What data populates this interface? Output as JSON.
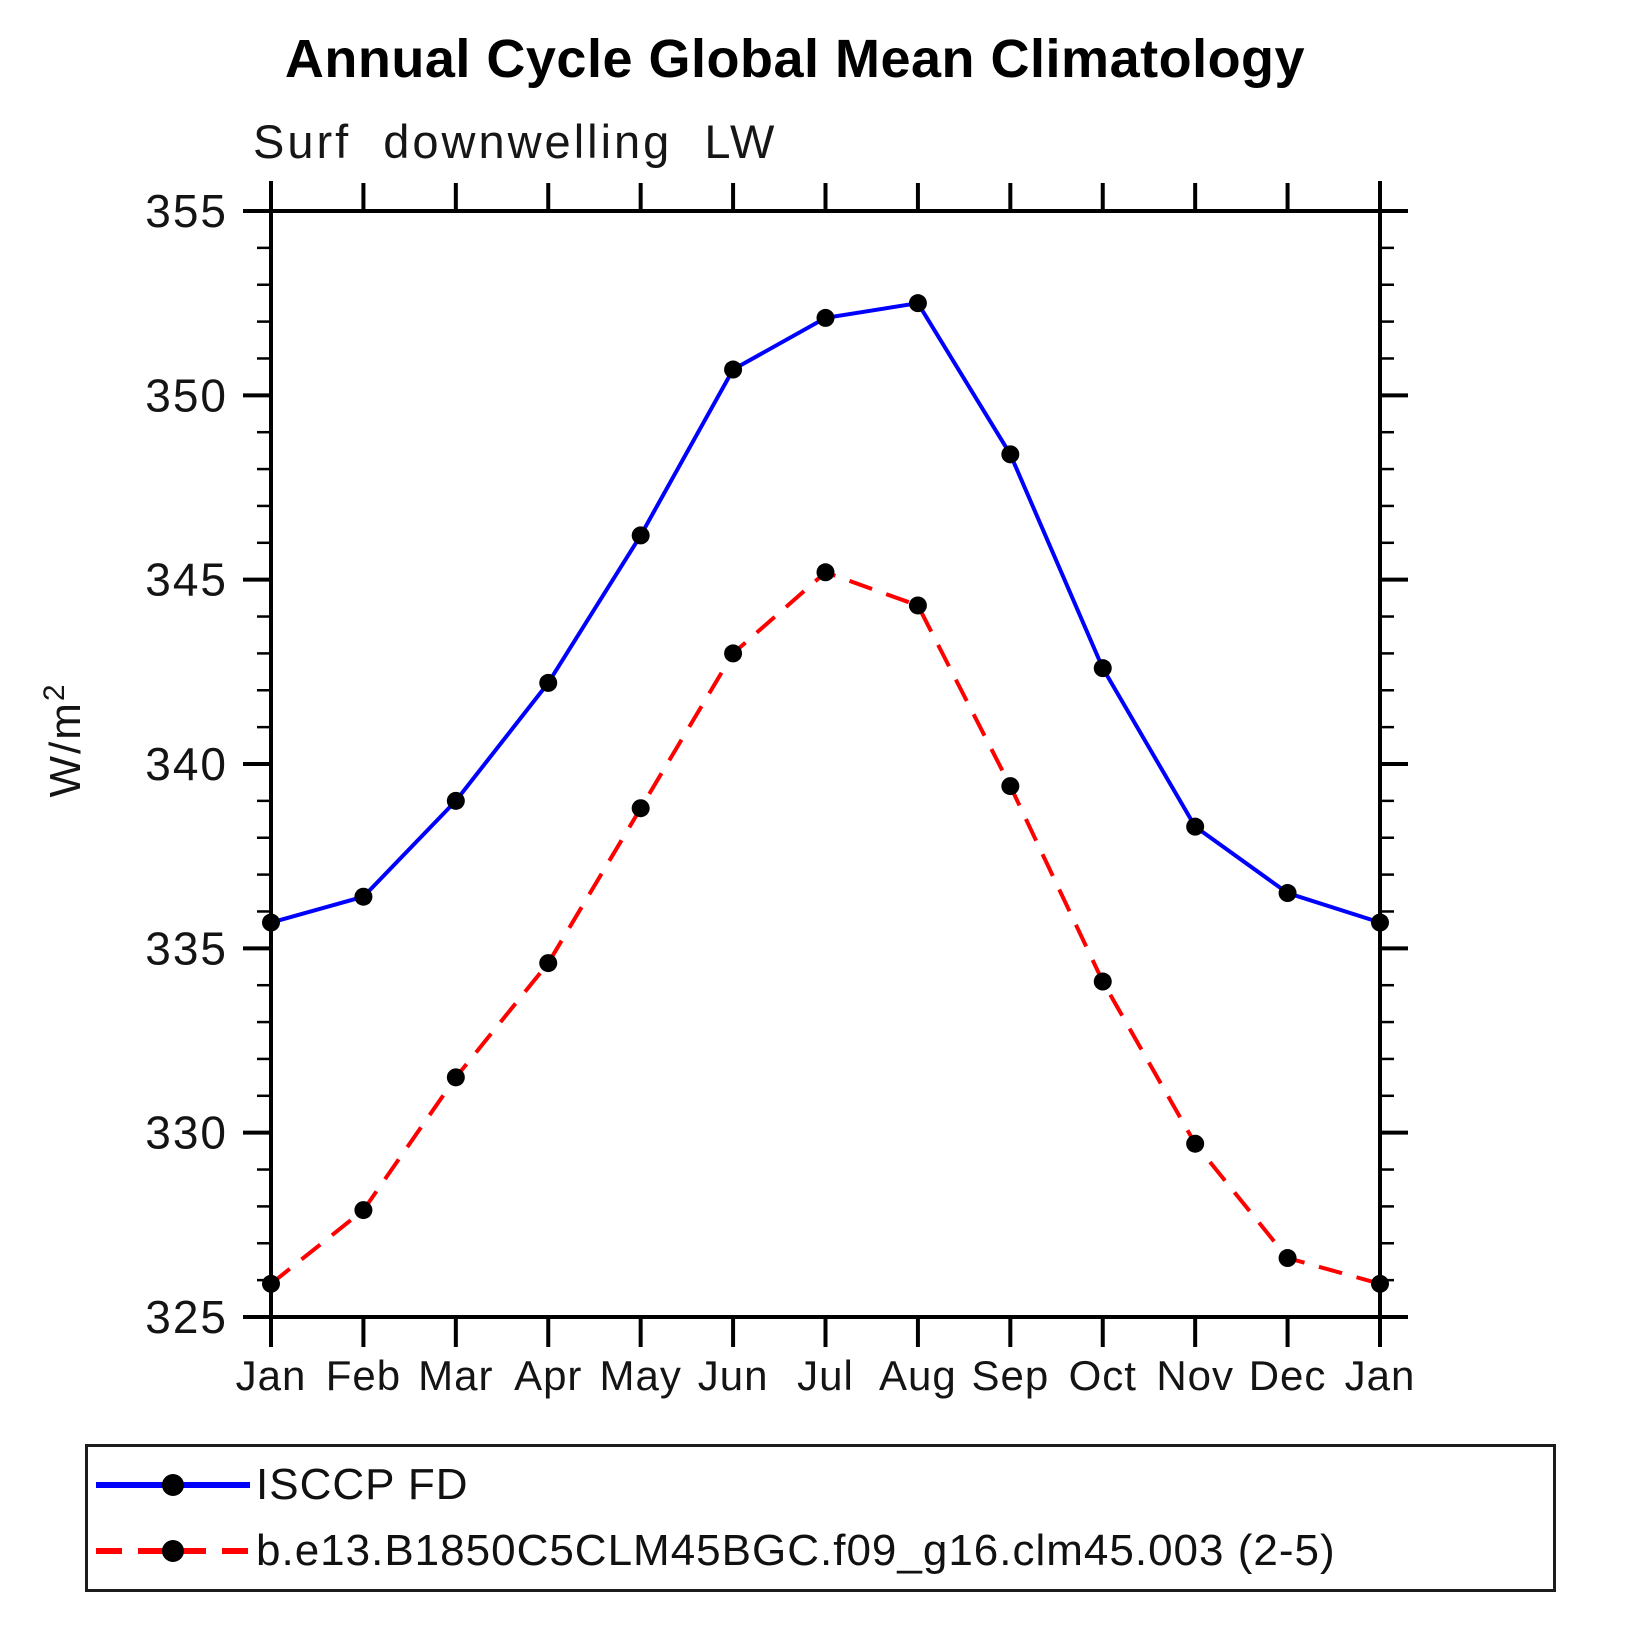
{
  "chart_data": {
    "type": "line",
    "title": "Annual Cycle Global Mean Climatology",
    "subtitle": "Surf downwelling LW",
    "ylabel_base": "W/m",
    "ylabel_exp": "2",
    "x_labels": [
      "Jan",
      "Feb",
      "Mar",
      "Apr",
      "May",
      "Jun",
      "Jul",
      "Aug",
      "Sep",
      "Oct",
      "Nov",
      "Dec",
      "Jan"
    ],
    "ylim": [
      325,
      355
    ],
    "ytick_major_step": 5,
    "ytick_minor_step": 1,
    "grid": "off",
    "legend_position": "bottom",
    "axis_color": "#000000",
    "marker_color": "#000000",
    "series": [
      {
        "name": "ISCCP FD",
        "color": "#0000ff",
        "style": "solid",
        "marker": "circle",
        "values": [
          335.7,
          336.4,
          339.0,
          342.2,
          346.2,
          350.7,
          352.1,
          352.5,
          348.4,
          342.6,
          338.3,
          336.5,
          335.7
        ]
      },
      {
        "name": "b.e13.B1850C5CLM45BGC.f09_g16.clm45.003 (2-5)",
        "color": "#ff0000",
        "style": "dashed",
        "marker": "circle",
        "values": [
          325.9,
          327.9,
          331.5,
          334.6,
          338.8,
          343.0,
          345.2,
          344.3,
          339.4,
          334.1,
          329.7,
          326.6,
          325.9
        ]
      }
    ]
  }
}
